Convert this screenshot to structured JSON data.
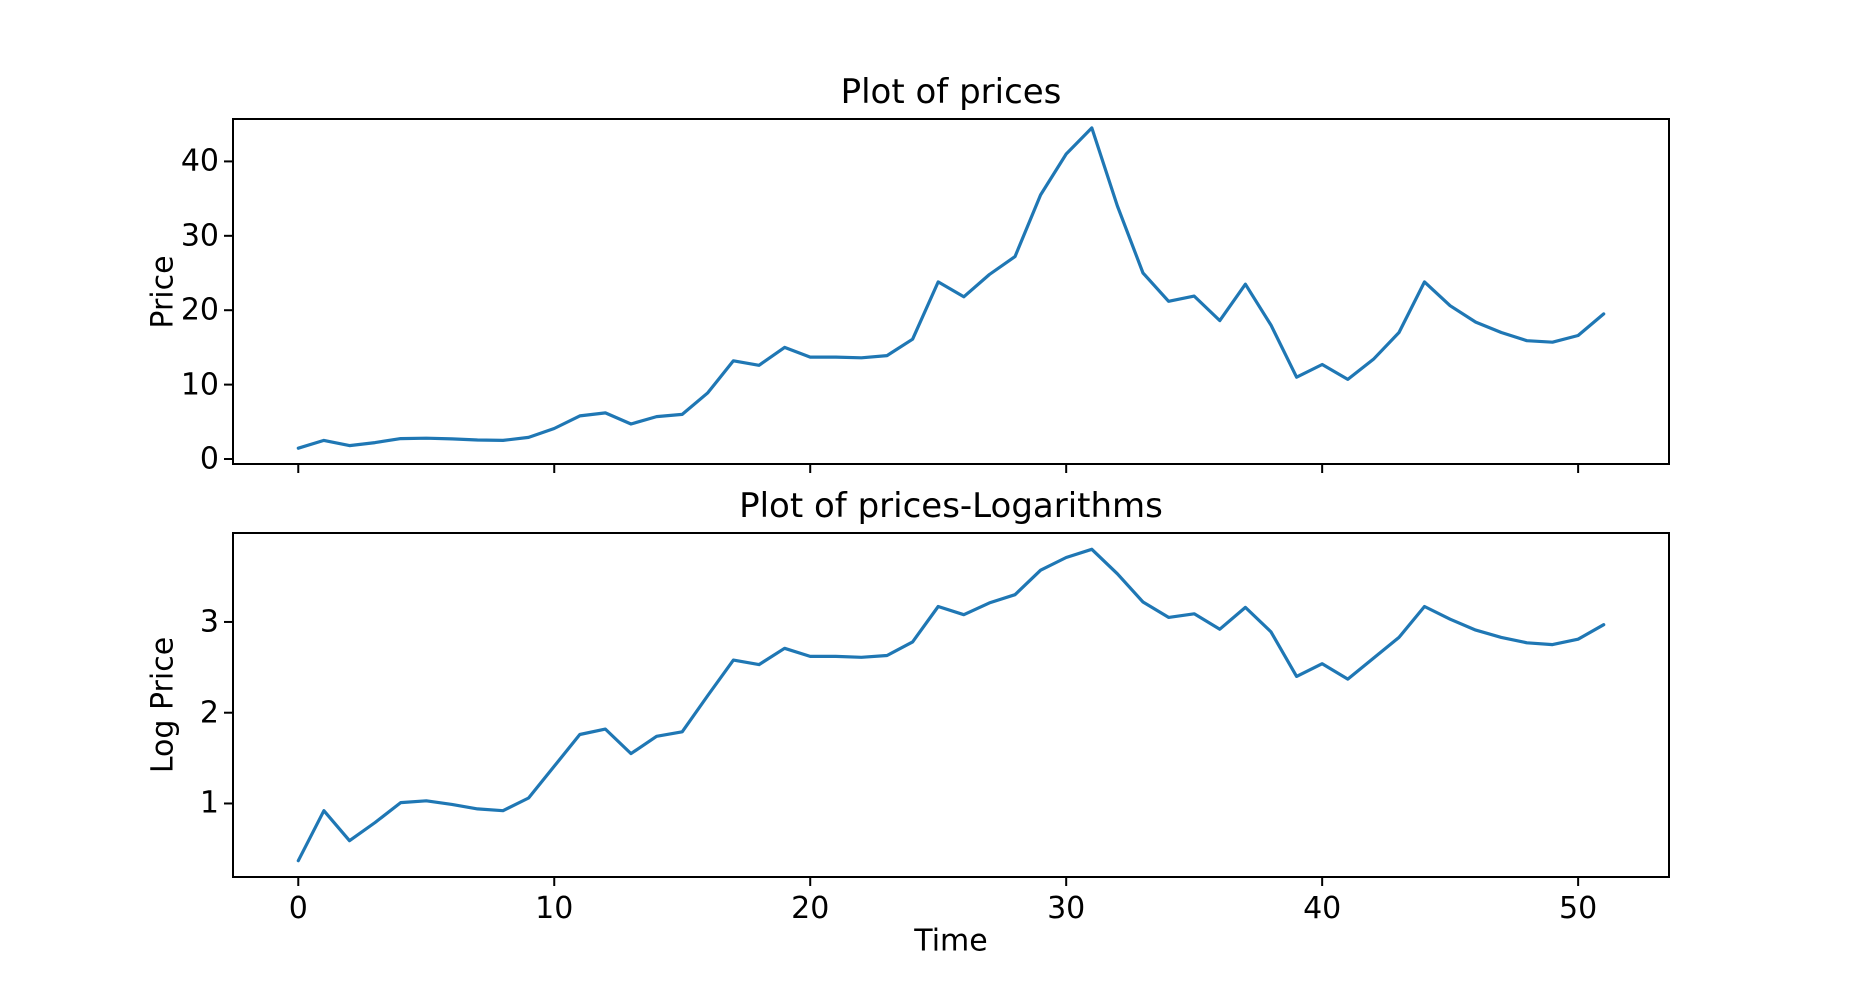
{
  "figure": {
    "background": "#ffffff",
    "line_color": "#1f77b4",
    "spine_color": "#000000",
    "text_color": "#000000"
  },
  "chart_data": [
    {
      "type": "line",
      "title": "Plot of prices",
      "xlabel": "",
      "ylabel": "Price",
      "legend": null,
      "grid": false,
      "xlim": [
        -2.55,
        53.55
      ],
      "ylim": [
        -0.67,
        45.7
      ],
      "xticks": [
        0,
        10,
        20,
        30,
        40,
        50
      ],
      "yticks": [
        0,
        10,
        20,
        30,
        40
      ],
      "x": [
        0,
        1,
        2,
        3,
        4,
        5,
        6,
        7,
        8,
        9,
        10,
        11,
        12,
        13,
        14,
        15,
        16,
        17,
        18,
        19,
        20,
        21,
        22,
        23,
        24,
        25,
        26,
        27,
        28,
        29,
        30,
        31,
        32,
        33,
        34,
        35,
        36,
        37,
        38,
        39,
        40,
        41,
        42,
        43,
        44,
        45,
        46,
        47,
        48,
        49,
        50,
        51
      ],
      "y": [
        1.45,
        2.5,
        1.8,
        2.2,
        2.75,
        2.8,
        2.7,
        2.55,
        2.5,
        2.9,
        4.1,
        5.8,
        6.2,
        4.7,
        5.7,
        6.0,
        8.9,
        13.2,
        12.6,
        15.0,
        13.7,
        13.7,
        13.6,
        13.9,
        16.1,
        23.8,
        21.8,
        24.8,
        27.2,
        35.5,
        41.0,
        44.5,
        34.0,
        25.0,
        21.2,
        21.9,
        18.6,
        23.5,
        18.0,
        11.0,
        12.7,
        10.7,
        13.4,
        17.0,
        23.8,
        20.6,
        18.4,
        17.0,
        15.9,
        15.7,
        16.6,
        19.5
      ]
    },
    {
      "type": "line",
      "title": "Plot of prices-Logarithms",
      "xlabel": "Time",
      "ylabel": "Log Price",
      "legend": null,
      "grid": false,
      "xlim": [
        -2.55,
        53.55
      ],
      "ylim": [
        0.19,
        3.98
      ],
      "xticks": [
        0,
        10,
        20,
        30,
        40,
        50
      ],
      "yticks": [
        1,
        2,
        3
      ],
      "x": [
        0,
        1,
        2,
        3,
        4,
        5,
        6,
        7,
        8,
        9,
        10,
        11,
        12,
        13,
        14,
        15,
        16,
        17,
        18,
        19,
        20,
        21,
        22,
        23,
        24,
        25,
        26,
        27,
        28,
        29,
        30,
        31,
        32,
        33,
        34,
        35,
        36,
        37,
        38,
        39,
        40,
        41,
        42,
        43,
        44,
        45,
        46,
        47,
        48,
        49,
        50,
        51
      ],
      "y": [
        0.37,
        0.92,
        0.59,
        0.79,
        1.01,
        1.03,
        0.99,
        0.94,
        0.92,
        1.06,
        1.41,
        1.76,
        1.82,
        1.55,
        1.74,
        1.79,
        2.19,
        2.58,
        2.53,
        2.71,
        2.62,
        2.62,
        2.61,
        2.63,
        2.78,
        3.17,
        3.08,
        3.21,
        3.3,
        3.57,
        3.71,
        3.8,
        3.53,
        3.22,
        3.05,
        3.09,
        2.92,
        3.16,
        2.89,
        2.4,
        2.54,
        2.37,
        2.6,
        2.83,
        3.17,
        3.03,
        2.91,
        2.83,
        2.77,
        2.75,
        2.81,
        2.97
      ]
    }
  ]
}
